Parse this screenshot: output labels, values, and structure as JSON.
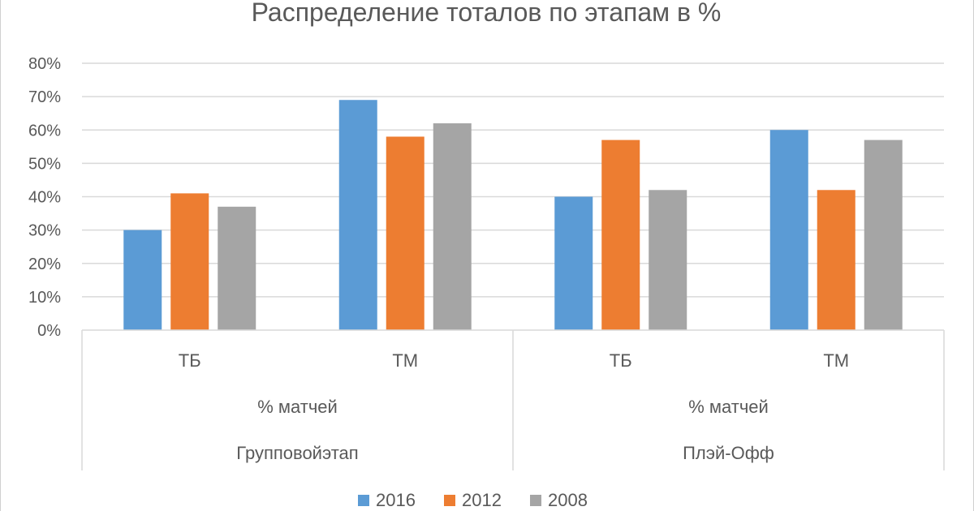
{
  "chart_data": {
    "type": "bar",
    "title": "Распределение тоталов по этапам в %",
    "xlabel": "",
    "ylabel": "",
    "ylim": [
      0,
      0.8
    ],
    "yticks": [
      "0%",
      "10%",
      "20%",
      "30%",
      "40%",
      "50%",
      "60%",
      "70%",
      "80%"
    ],
    "ytick_values": [
      0,
      0.1,
      0.2,
      0.3,
      0.4,
      0.5,
      0.6,
      0.7,
      0.8
    ],
    "grid": true,
    "legend_position": "bottom",
    "categories": [
      "ТБ",
      "ТМ",
      "ТБ",
      "ТМ"
    ],
    "groups": [
      {
        "measure": "% матчей",
        "stage": "Групповойэтап"
      },
      {
        "measure": "% матчей",
        "stage": "Плэй-Офф"
      }
    ],
    "series": [
      {
        "name": "2016",
        "color": "#5b9bd5",
        "values": [
          0.3,
          0.69,
          0.4,
          0.6
        ]
      },
      {
        "name": "2012",
        "color": "#ed7d31",
        "values": [
          0.41,
          0.58,
          0.57,
          0.42
        ]
      },
      {
        "name": "2008",
        "color": "#a5a5a5",
        "values": [
          0.37,
          0.62,
          0.42,
          0.57
        ]
      }
    ]
  }
}
